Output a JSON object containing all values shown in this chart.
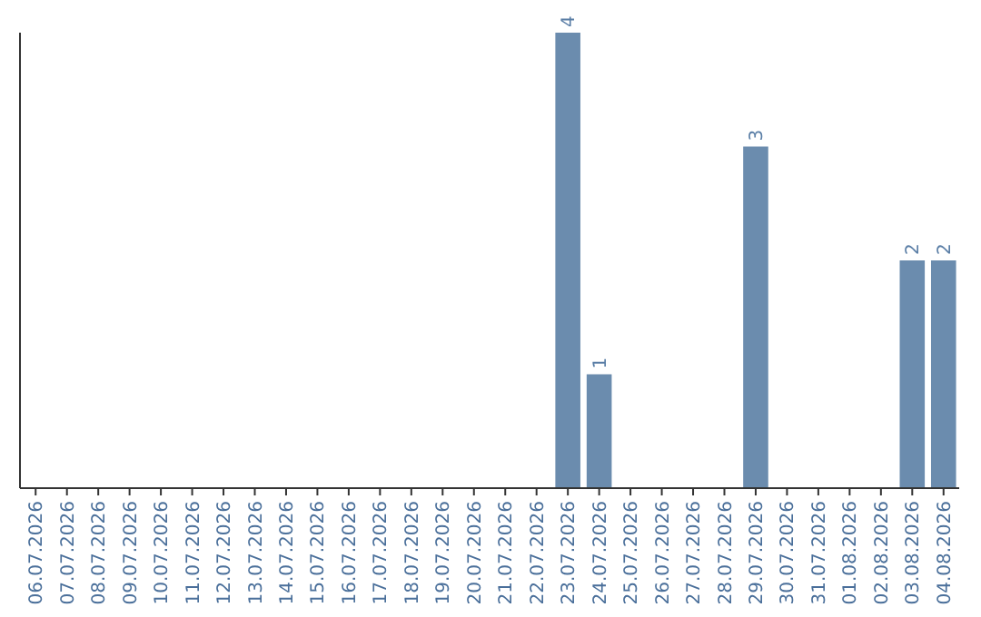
{
  "chart_data": {
    "type": "bar",
    "categories": [
      "06.07.2026",
      "07.07.2026",
      "08.07.2026",
      "09.07.2026",
      "10.07.2026",
      "11.07.2026",
      "12.07.2026",
      "13.07.2026",
      "14.07.2026",
      "15.07.2026",
      "16.07.2026",
      "17.07.2026",
      "18.07.2026",
      "19.07.2026",
      "20.07.2026",
      "21.07.2026",
      "22.07.2026",
      "23.07.2026",
      "24.07.2026",
      "25.07.2026",
      "26.07.2026",
      "27.07.2026",
      "28.07.2026",
      "29.07.2026",
      "30.07.2026",
      "31.07.2026",
      "01.08.2026",
      "02.08.2026",
      "03.08.2026",
      "04.08.2026"
    ],
    "values": [
      null,
      null,
      null,
      null,
      null,
      null,
      null,
      null,
      null,
      null,
      null,
      null,
      null,
      null,
      null,
      null,
      null,
      4,
      1,
      null,
      null,
      null,
      null,
      3,
      null,
      null,
      null,
      null,
      2,
      2
    ],
    "data_labels": true,
    "color": "#6b8cae",
    "tick_labels": "x"
  }
}
